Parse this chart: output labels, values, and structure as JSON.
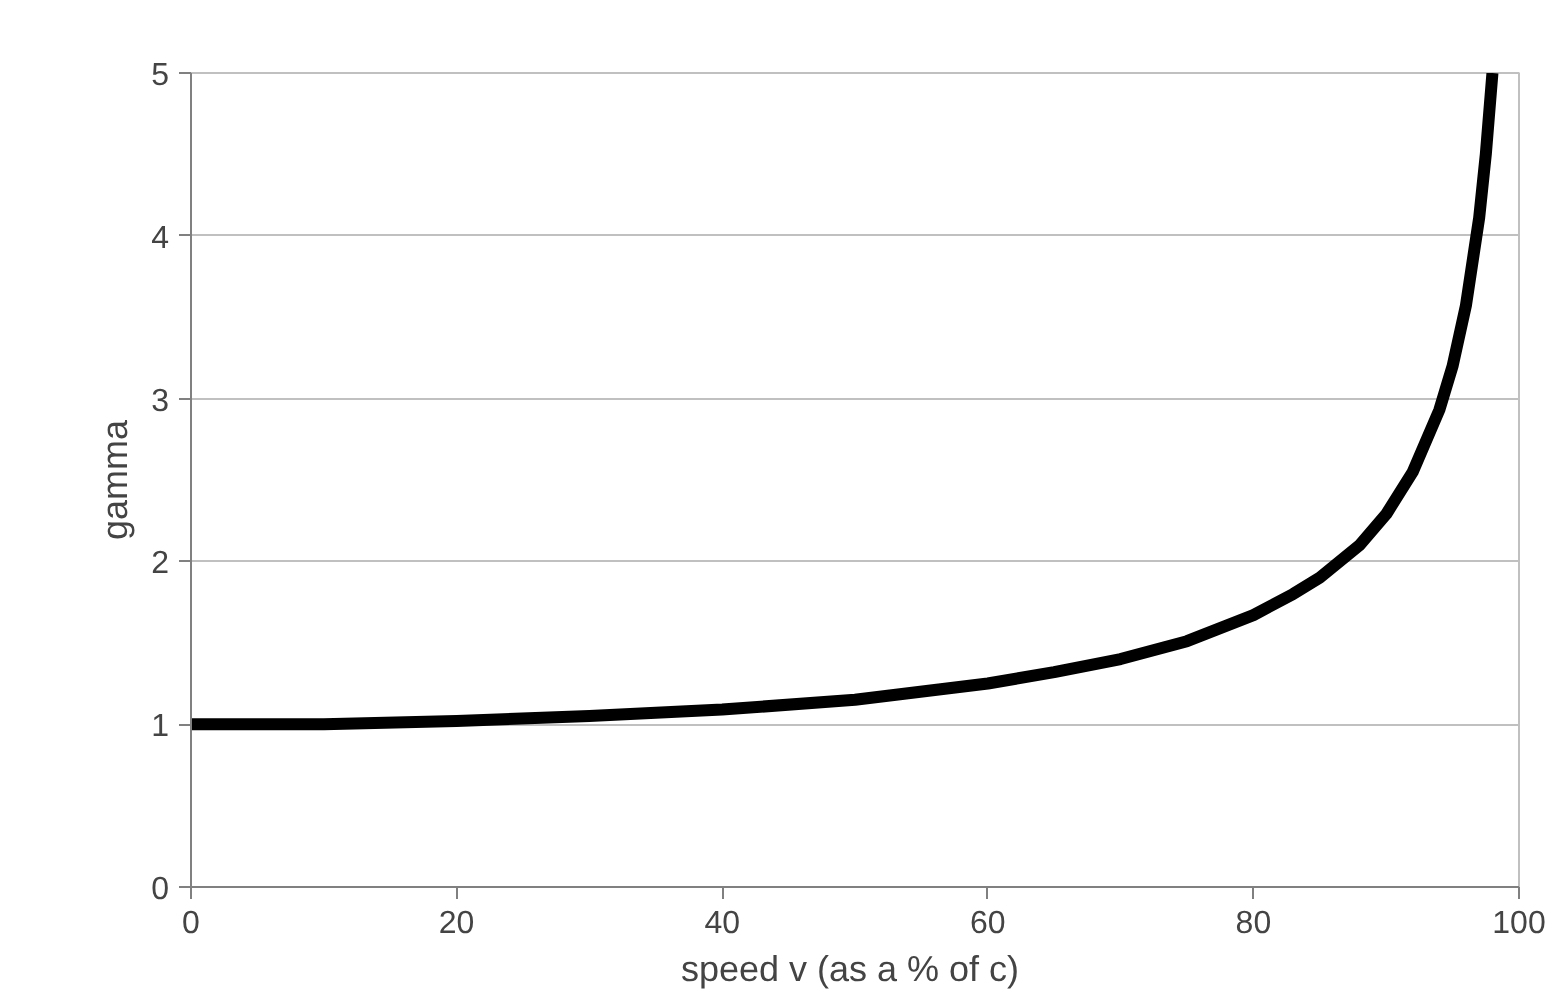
{
  "chart_data": {
    "type": "line",
    "xlabel": "speed  v (as a % of c)",
    "ylabel": "gamma",
    "x": [
      0,
      10,
      20,
      30,
      40,
      50,
      60,
      65,
      70,
      75,
      80,
      83,
      85,
      88,
      90,
      92,
      94,
      95,
      96,
      97,
      97.5,
      98
    ],
    "series": [
      {
        "color": "#000000",
        "values": [
          1,
          1.0,
          1.02,
          1.05,
          1.09,
          1.15,
          1.25,
          1.32,
          1.4,
          1.51,
          1.67,
          1.8,
          1.9,
          2.1,
          2.29,
          2.55,
          2.93,
          3.2,
          3.57,
          4.11,
          4.5,
          5.0
        ]
      }
    ],
    "xlim": [
      0,
      100
    ],
    "ylim": [
      0,
      5
    ],
    "xticks": [
      0,
      20,
      40,
      60,
      80,
      100
    ],
    "yticks": [
      0,
      1,
      2,
      3,
      4,
      5
    ],
    "grid": "y",
    "marker": "none",
    "line_style": "solid"
  }
}
